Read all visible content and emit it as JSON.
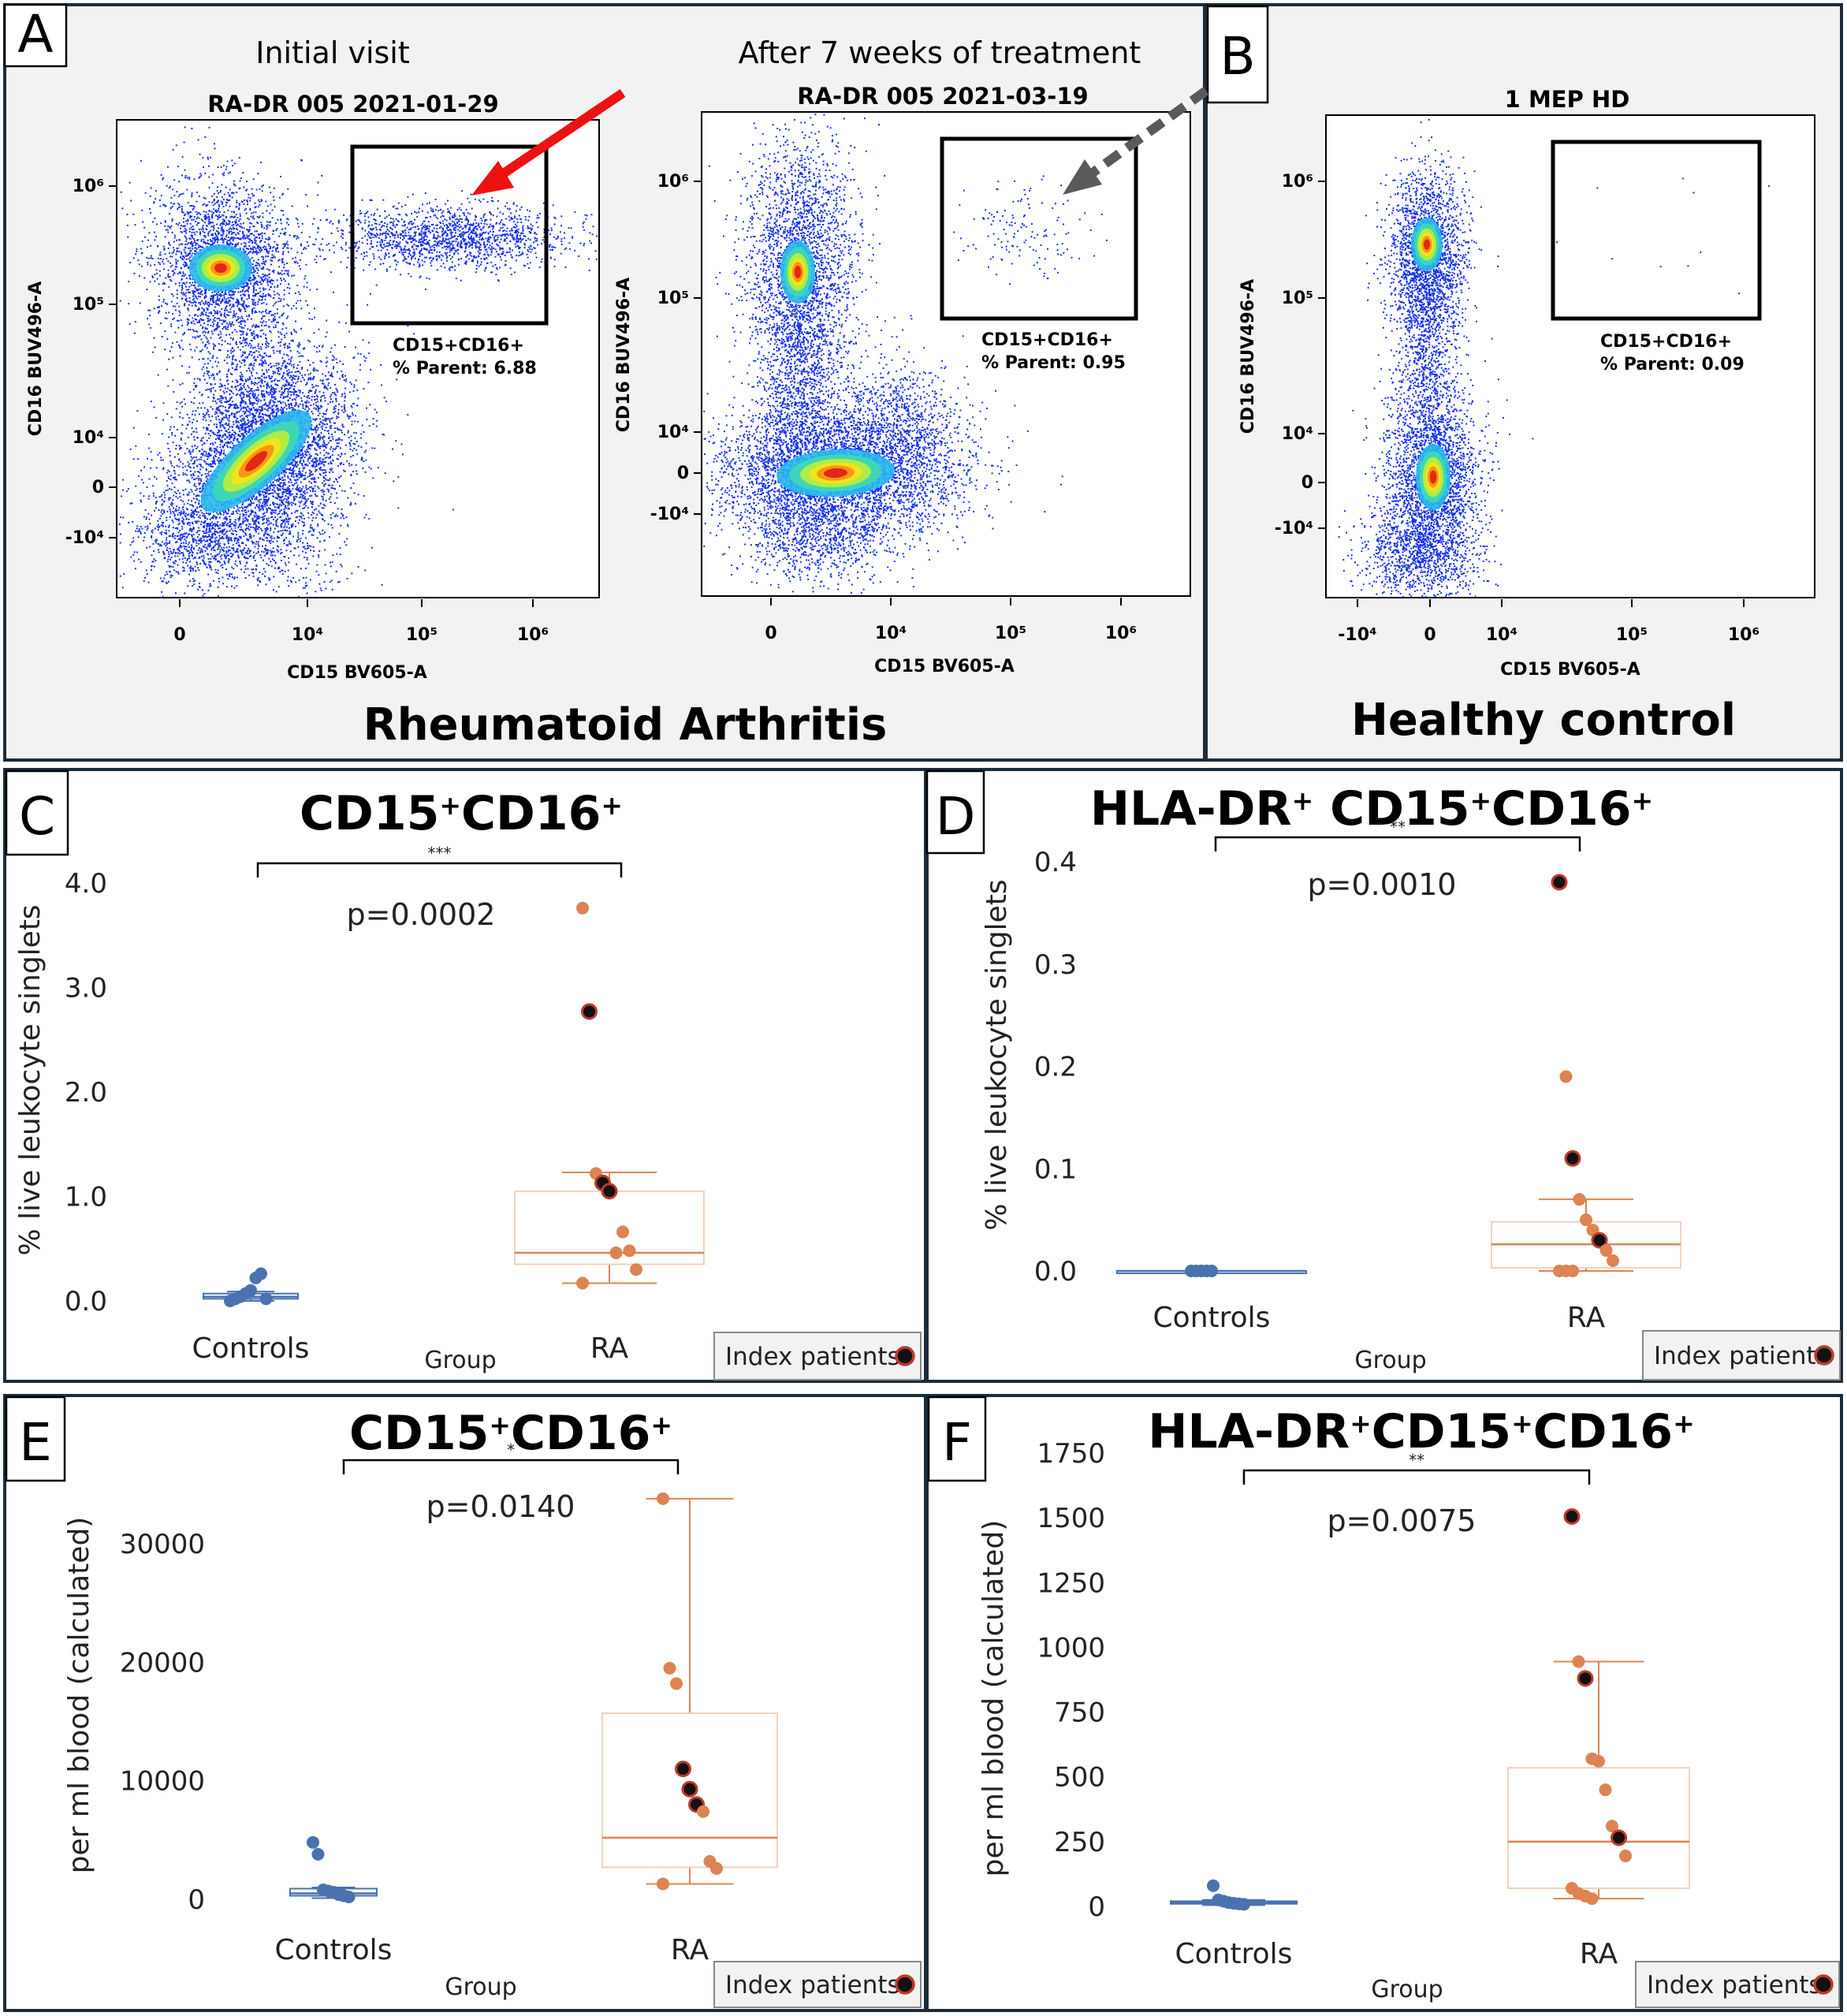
{
  "panels_flow": {
    "A": {
      "letter": "A",
      "caption": "Rheumatoid Arthritis",
      "plots": [
        {
          "heading": "Initial visit",
          "sample": "RA-DR 005 2021-01-29",
          "gate_name": "CD15+CD16+",
          "gate_stat": "% Parent: 6.88",
          "ylabel": "CD16 BUV496-A",
          "xlabel": "CD15 BV605-A",
          "yticks": [
            "10⁶",
            "10⁵",
            "10⁴",
            "0",
            "-10⁴"
          ],
          "xticks": [
            "0",
            "10⁴",
            "10⁵",
            "10⁶"
          ]
        },
        {
          "heading": "After 7 weeks of treatment",
          "sample": "RA-DR 005 2021-03-19",
          "gate_name": "CD15+CD16+",
          "gate_stat": "% Parent: 0.95",
          "ylabel": "CD16 BUV496-A",
          "xlabel": "CD15 BV605-A",
          "yticks": [
            "10⁶",
            "10⁵",
            "10⁴",
            "0",
            "-10⁴"
          ],
          "xticks": [
            "0",
            "10⁴",
            "10⁵",
            "10⁶"
          ]
        }
      ]
    },
    "B": {
      "letter": "B",
      "caption": "Healthy control",
      "plots": [
        {
          "sample": "1 MEP HD",
          "gate_name": "CD15+CD16+",
          "gate_stat": "% Parent: 0.09",
          "ylabel": "CD16 BUV496-A",
          "xlabel": "CD15 BV605-A",
          "yticks": [
            "10⁶",
            "10⁵",
            "10⁴",
            "0",
            "-10⁴"
          ],
          "xticks": [
            "-10⁴",
            "0",
            "10⁴",
            "10⁵",
            "10⁶"
          ]
        }
      ]
    }
  },
  "chart_data": [
    {
      "panel": "C",
      "type": "box",
      "title": "CD15+CD16+",
      "title_parts": [
        "CD15",
        "+",
        "CD16",
        "+"
      ],
      "ylabel": "% live leukocyte singlets",
      "xlabel": "Group",
      "categories": [
        "Controls",
        "RA"
      ],
      "ylim": [
        0,
        4.35
      ],
      "yticks": [
        0,
        1,
        2,
        3,
        4
      ],
      "ytick_labels": [
        "0.0",
        "1.0",
        "2.0",
        "3.0",
        "4.0"
      ],
      "significance": "***",
      "pvalue": "p=0.0002",
      "legend": "Index patients",
      "box": {
        "Controls": {
          "q1": 0.02,
          "median": 0.04,
          "q3": 0.07,
          "whisker_low": 0.0,
          "whisker_high": 0.09
        },
        "RA": {
          "q1": 0.35,
          "median": 0.46,
          "q3": 1.05,
          "whisker_low": 0.17,
          "whisker_high": 1.23
        }
      },
      "points": {
        "Controls": [
          0.0,
          0.02,
          0.04,
          0.07,
          0.1,
          0.22,
          0.26,
          0.02
        ],
        "RA": [
          3.76,
          2.77,
          1.22,
          1.13,
          1.05,
          0.46,
          0.66,
          0.48,
          0.3,
          0.17
        ]
      },
      "index_points": {
        "RA": [
          2.77,
          1.13,
          1.05
        ]
      }
    },
    {
      "panel": "D",
      "type": "box",
      "title": "HLA-DR+ CD15+CD16+",
      "title_parts": [
        "HLA-DR",
        "+",
        " CD15",
        "+",
        "CD16",
        "+"
      ],
      "ylabel": "% live leukocyte singlets",
      "xlabel": "Group",
      "categories": [
        "Controls",
        "RA"
      ],
      "ylim": [
        0,
        0.4
      ],
      "yticks": [
        0,
        0.1,
        0.2,
        0.3,
        0.4
      ],
      "ytick_labels": [
        "0.0",
        "0.1",
        "0.2",
        "0.3",
        "0.4"
      ],
      "significance": "**",
      "pvalue": "p=0.0010",
      "legend": "Index patients",
      "box": {
        "Controls": {
          "q1": 0.0,
          "median": 0.0,
          "q3": 0.0,
          "whisker_low": 0.0,
          "whisker_high": 0.0
        },
        "RA": {
          "q1": 0.003,
          "median": 0.026,
          "q3": 0.048,
          "whisker_low": 0.0,
          "whisker_high": 0.07
        }
      },
      "points": {
        "Controls": [
          0.0,
          0.0,
          0.0,
          0.0,
          0.0
        ],
        "RA": [
          0.38,
          0.19,
          0.11,
          0.07,
          0.05,
          0.04,
          0.03,
          0.02,
          0.01,
          0.0,
          0.0,
          0.0
        ]
      },
      "index_points": {
        "RA": [
          0.38,
          0.11,
          0.03
        ]
      }
    },
    {
      "panel": "E",
      "type": "box",
      "title": "CD15+CD16+",
      "title_parts": [
        "CD15",
        "+",
        "CD16",
        "+"
      ],
      "ylabel": "per ml blood (calculated)",
      "xlabel": "Group",
      "categories": [
        "Controls",
        "RA"
      ],
      "ylim": [
        0,
        36000
      ],
      "yticks": [
        0,
        10000,
        20000,
        30000
      ],
      "ytick_labels": [
        "0",
        "10000",
        "20000",
        "30000"
      ],
      "significance": "*",
      "pvalue": "p=0.0140",
      "legend": "Index patients",
      "box": {
        "Controls": {
          "q1": 300,
          "median": 500,
          "q3": 900,
          "whisker_low": 100,
          "whisker_high": 1000
        },
        "RA": {
          "q1": 2700,
          "median": 5200,
          "q3": 15700,
          "whisker_low": 1300,
          "whisker_high": 33800
        }
      },
      "points": {
        "Controls": [
          4800,
          3800,
          800,
          700,
          600,
          400,
          300,
          200
        ],
        "RA": [
          33800,
          19500,
          18200,
          11000,
          9300,
          8000,
          7400,
          3200,
          2600,
          1300
        ]
      },
      "index_points": {
        "RA": [
          11000,
          9300,
          8000
        ]
      }
    },
    {
      "panel": "F",
      "type": "box",
      "title": "HLA-DR+CD15+CD16+",
      "title_parts": [
        "HLA-DR",
        "+",
        "CD15",
        "+",
        "CD16",
        "+"
      ],
      "ylabel": "per ml blood (calculated)",
      "xlabel": "Group",
      "categories": [
        "Controls",
        "RA"
      ],
      "ylim": [
        0,
        1800
      ],
      "yticks": [
        0,
        250,
        500,
        750,
        1000,
        1250,
        1500,
        1750
      ],
      "ytick_labels": [
        "0",
        "250",
        "500",
        "750",
        "1000",
        "1250",
        "1500",
        "1750"
      ],
      "significance": "**",
      "pvalue": "p=0.0075",
      "legend": "Index patients",
      "box": {
        "Controls": {
          "q1": 10,
          "median": 15,
          "q3": 20,
          "whisker_low": 5,
          "whisker_high": 25
        },
        "RA": {
          "q1": 70,
          "median": 250,
          "q3": 535,
          "whisker_low": 30,
          "whisker_high": 945
        }
      },
      "points": {
        "Controls": [
          80,
          25,
          20,
          15,
          12,
          10,
          8
        ],
        "RA": [
          1505,
          945,
          880,
          570,
          560,
          450,
          310,
          265,
          195,
          70,
          50,
          40,
          30
        ]
      },
      "index_points": {
        "RA": [
          1505,
          880,
          265
        ]
      }
    }
  ],
  "colors": {
    "controls": "#4a72b0",
    "ra": "#dd8452",
    "ra_box": "#f2d2bd",
    "index_fill": "#111111",
    "index_ring": "#c0392b",
    "gate_arrow": "#ee1111",
    "gate_arrow_after": "#5a5a5a"
  }
}
